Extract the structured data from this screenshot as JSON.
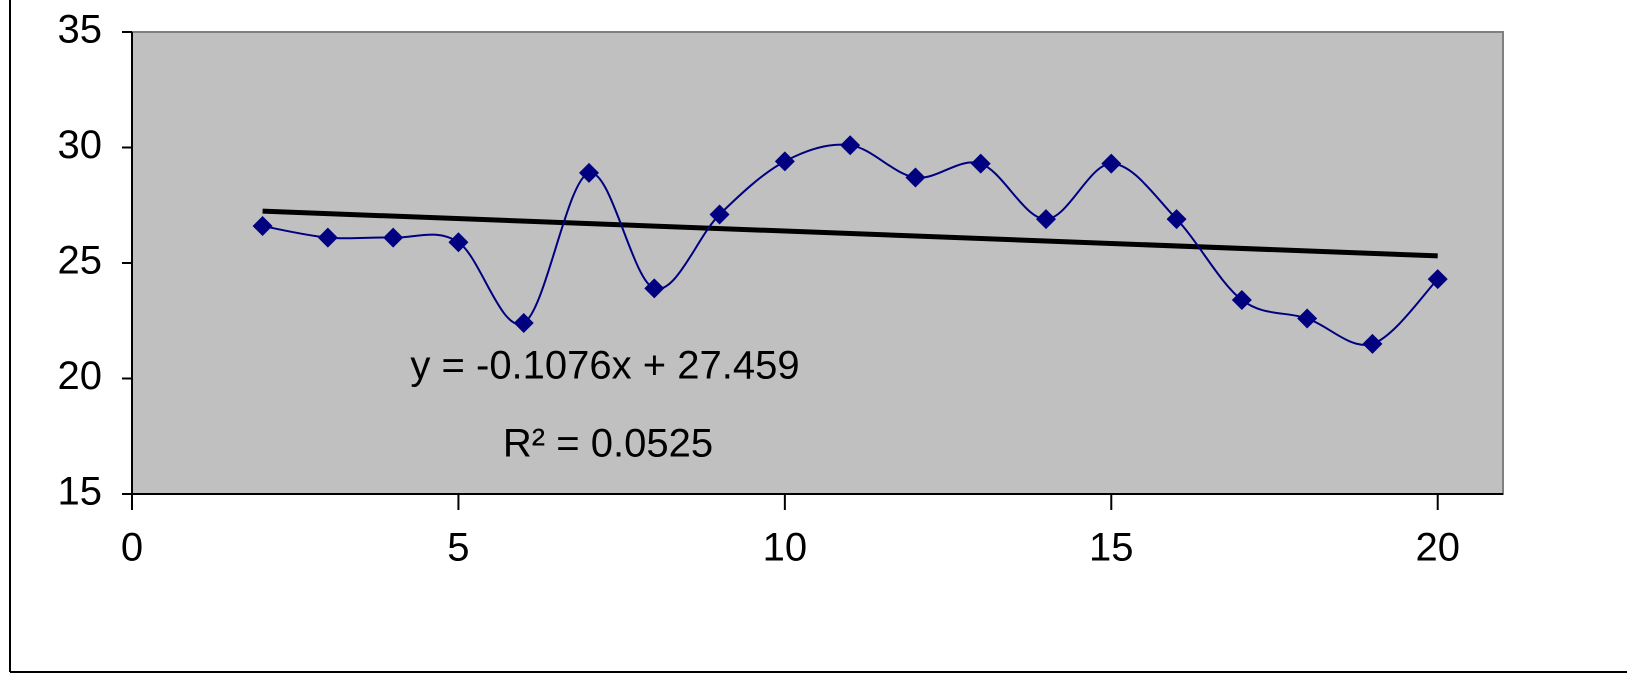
{
  "chart_data": {
    "type": "scatter",
    "x": [
      2,
      3,
      4,
      5,
      6,
      7,
      8,
      9,
      10,
      11,
      12,
      13,
      14,
      15,
      16,
      17,
      18,
      19,
      20
    ],
    "series": [
      {
        "color": "#000080",
        "values": [
          26.6,
          26.1,
          26.1,
          25.9,
          22.4,
          28.9,
          23.9,
          27.1,
          29.4,
          30.1,
          28.7,
          29.3,
          26.9,
          29.3,
          26.9,
          23.4,
          22.6,
          21.5,
          24.3
        ]
      }
    ],
    "trendline": {
      "slope": -0.1076,
      "intercept": 27.459,
      "color": "#000000"
    },
    "annotations": [
      "y = -0.1076x + 27.459",
      "R² = 0.0525"
    ],
    "xlim": [
      0,
      21
    ],
    "xticks": [
      0,
      5,
      10,
      15,
      20
    ],
    "ylim": [
      15,
      35
    ],
    "yticks": [
      15,
      20,
      25,
      30,
      35
    ],
    "plot_background": "#c0c0c0",
    "smooth": true
  }
}
